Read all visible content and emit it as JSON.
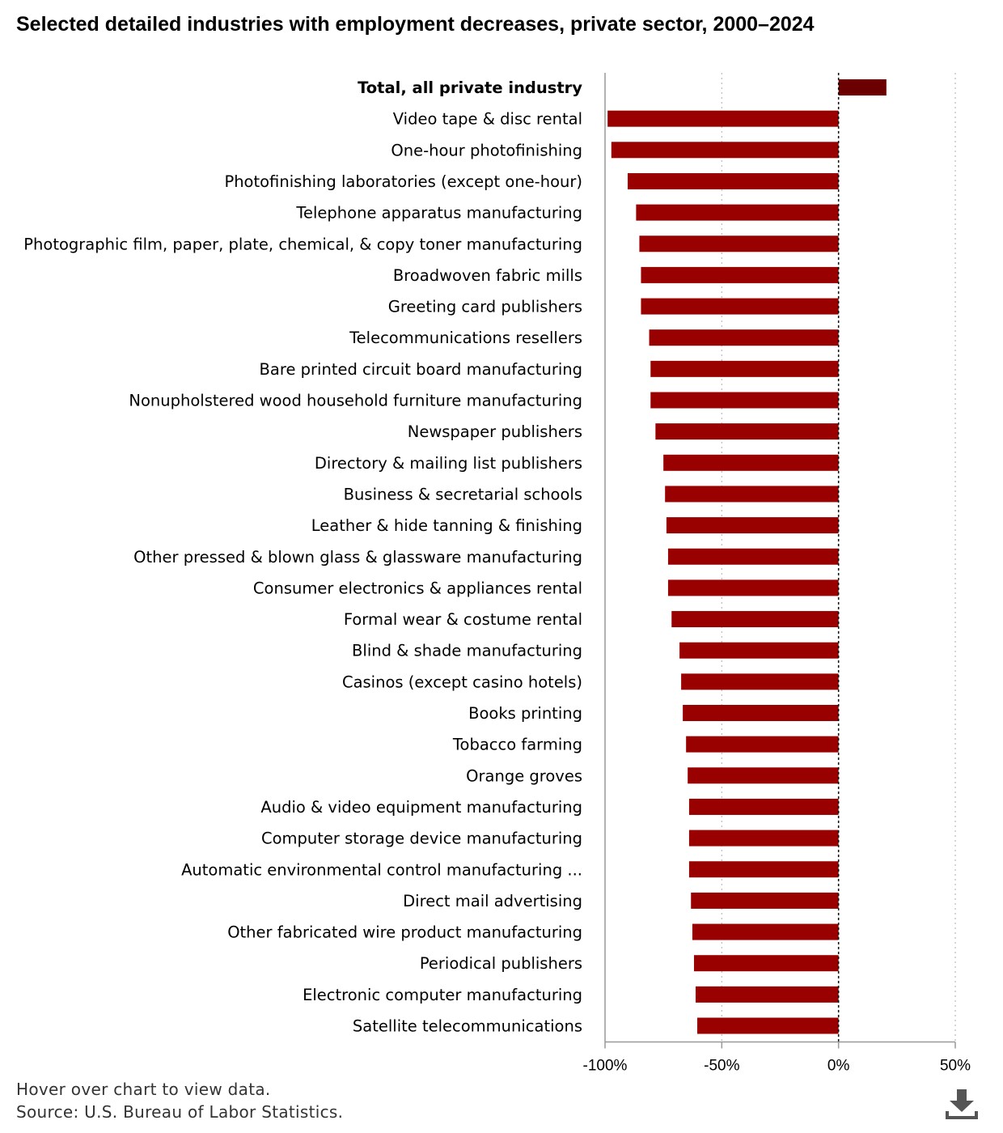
{
  "chart_data": {
    "type": "bar",
    "orientation": "horizontal",
    "title": "Selected detailed industries with employment decreases, private sector, 2000–2024",
    "xlabel": "",
    "ylabel": "",
    "xlim": [
      -100,
      50
    ],
    "x_ticks": [
      -100,
      -50,
      0,
      50
    ],
    "x_tick_labels": [
      "-100%",
      "-50%",
      "0%",
      "50%"
    ],
    "grid": "vertical dotted",
    "legend": "none",
    "colors": {
      "bar": "#990000",
      "total_bar": "#6b0000",
      "zero_line": "#000000",
      "grid": "#bbbbbb"
    },
    "categories": [
      "Total, all private industry",
      "Video tape & disc rental",
      "One-hour photofinishing",
      "Photofinishing laboratories (except one-hour)",
      "Telephone apparatus manufacturing",
      "Photographic film, paper, plate, chemical, & copy toner manufacturing",
      "Broadwoven fabric mills",
      "Greeting card publishers",
      "Telecommunications resellers",
      "Bare printed circuit board manufacturing",
      "Nonupholstered wood household furniture manufacturing",
      "Newspaper publishers",
      "Directory & mailing list publishers",
      "Business & secretarial schools",
      "Leather & hide tanning & finishing",
      "Other pressed & blown glass & glassware manufacturing",
      "Consumer electronics & appliances rental",
      "Formal wear & costume rental",
      "Blind & shade manufacturing",
      "Casinos (except casino hotels)",
      "Books printing",
      "Tobacco farming",
      "Orange groves",
      "Audio & video equipment manufacturing",
      "Computer storage device manufacturing",
      "Automatic environmental control manufacturing ...",
      "Direct mail advertising",
      "Other fabricated wire product manufacturing",
      "Periodical publishers",
      "Electronic computer manufacturing",
      "Satellite telecommunications"
    ],
    "values": [
      20.5,
      -98.9,
      -97.3,
      -90.3,
      -86.7,
      -85.3,
      -84.6,
      -84.6,
      -81.1,
      -80.5,
      -80.5,
      -78.4,
      -75.0,
      -74.3,
      -73.7,
      -73.0,
      -73.0,
      -71.5,
      -68.1,
      -67.4,
      -66.7,
      -65.3,
      -64.6,
      -64.0,
      -64.0,
      -64.0,
      -63.2,
      -62.6,
      -61.9,
      -61.2,
      -60.5
    ],
    "highlight_index": 0
  },
  "footer": {
    "hover_note": "Hover over chart to view data.",
    "source": "Source: U.S. Bureau of Labor Statistics."
  },
  "download_icon": "download-arrow-icon"
}
